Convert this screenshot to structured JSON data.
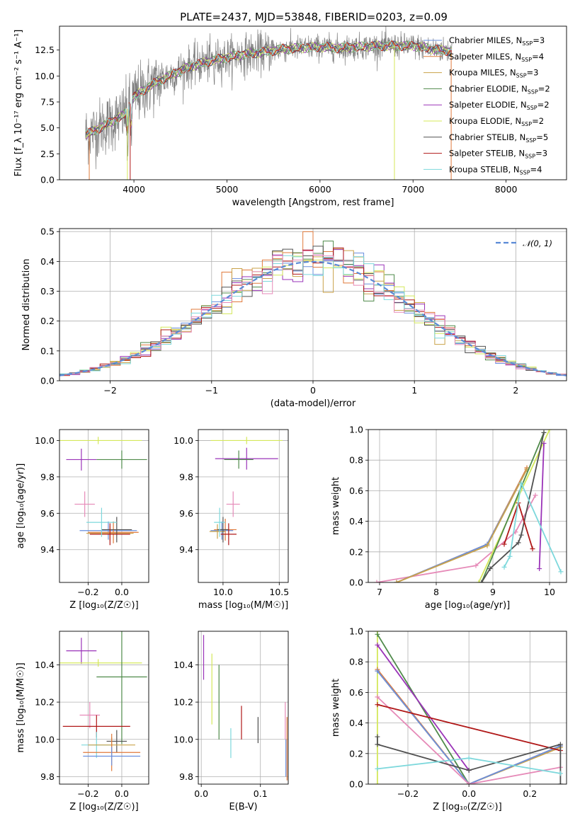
{
  "figure": {
    "title": "PLATE=2437, MJD=53848, FIBERID=0203, z=0.09"
  },
  "colors": {
    "chabrier_miles": "#6a8fde",
    "salpeter_miles": "#e07a3b",
    "kroupa_miles": "#c9a24a",
    "chabrier_elodie": "#4f8a4a",
    "salpeter_elodie": "#9a33b8",
    "kroupa_elodie": "#d4e85a",
    "chabrier_stelib": "#505050",
    "salpeter_stelib": "#b01818",
    "kroupa_stelib": "#7dd8dc",
    "pink": "#e68ab8",
    "data": "#808080",
    "normal": "#5a8ad6"
  },
  "chart_data": [
    {
      "type": "line",
      "name": "spectrum",
      "title": "PLATE=2437, MJD=53848, FIBERID=0203, z=0.09",
      "xlabel": "wavelength [Angstrom, rest frame]",
      "ylabel": "Flux [f_λ 10⁻¹⁷ erg cm⁻² s⁻¹ A⁻¹]",
      "xlim": [
        3200,
        8650
      ],
      "ylim": [
        0,
        14.8
      ],
      "xticks": [
        "4000",
        "5000",
        "6000",
        "7000",
        "8000"
      ],
      "yticks": [
        "0.0",
        "2.5",
        "5.0",
        "7.5",
        "10.0",
        "12.5"
      ],
      "legend_placement": "upper-right",
      "legend": [
        "Chabrier MILES, N_SSP=3",
        "Salpeter MILES, N_SSP=4",
        "Kroupa MILES, N_SSP=3",
        "Chabrier ELODIE, N_SSP=2",
        "Salpeter ELODIE, N_SSP=2",
        "Kroupa ELODIE, N_SSP=2",
        "Chabrier STELIB, N_SSP=5",
        "Salpeter STELIB, N_SSP=3",
        "Kroupa STELIB, N_SSP=4"
      ],
      "continuum": {
        "x": [
          3500,
          3700,
          3900,
          4000,
          4200,
          4400,
          4600,
          4800,
          5000,
          5200,
          5400,
          5600,
          5800,
          6000,
          6200,
          6400,
          6600,
          6800,
          7000,
          7200,
          7400
        ],
        "y": [
          4.4,
          5.3,
          6.3,
          8.0,
          9.2,
          10.1,
          10.9,
          11.4,
          11.8,
          12.1,
          12.3,
          12.6,
          12.7,
          12.8,
          12.7,
          12.8,
          12.9,
          12.9,
          12.9,
          12.6,
          12.4
        ]
      },
      "grid": false
    },
    {
      "type": "histogram",
      "name": "residuals",
      "xlabel": "(data-model)/error",
      "ylabel": "Normed distribution",
      "xlim": [
        -2.5,
        2.5
      ],
      "ylim": [
        0,
        0.51
      ],
      "xticks": [
        "−2",
        "−1",
        "0",
        "1",
        "2"
      ],
      "yticks": [
        "0.0",
        "0.1",
        "0.2",
        "0.3",
        "0.4",
        "0.5"
      ],
      "legend": [
        "𝒩(0, 1)"
      ],
      "legend_placement": "upper-right",
      "bin_width": 0.1,
      "grid": true
    },
    {
      "type": "errorbar",
      "name": "age-vs-Z",
      "xlabel": "Z [log₁₀(Z/Z☉)]",
      "ylabel": "age  [log₁₀(age/yr)]",
      "xlim": [
        -0.37,
        0.16
      ],
      "ylim": [
        9.22,
        10.06
      ],
      "xticks": [
        "−0.2",
        "0.0"
      ],
      "yticks": [
        "9.4",
        "9.6",
        "9.8",
        "10.0"
      ],
      "grid": true,
      "points": [
        {
          "series": "kroupa_elodie",
          "x": -0.14,
          "y": 10.0,
          "xerr": 0.26,
          "yerr": 0.02
        },
        {
          "series": "salpeter_elodie",
          "x": -0.24,
          "y": 9.895,
          "xerr": 0.09,
          "yerr": 0.06
        },
        {
          "series": "chabrier_elodie",
          "x": 0.0,
          "y": 9.895,
          "xerr": 0.15,
          "yerr": 0.05
        },
        {
          "series": "chabrier_miles",
          "x": -0.08,
          "y": 9.505,
          "xerr": 0.17,
          "yerr": 0.05
        },
        {
          "series": "salpeter_miles",
          "x": -0.05,
          "y": 9.495,
          "xerr": 0.15,
          "yerr": 0.06
        },
        {
          "series": "kroupa_miles",
          "x": -0.07,
          "y": 9.49,
          "xerr": 0.14,
          "yerr": 0.04
        },
        {
          "series": "chabrier_stelib",
          "x": -0.03,
          "y": 9.51,
          "xerr": 0.09,
          "yerr": 0.07
        },
        {
          "series": "salpeter_stelib",
          "x": -0.07,
          "y": 9.485,
          "xerr": 0.12,
          "yerr": 0.06
        },
        {
          "series": "pink",
          "x": -0.22,
          "y": 9.65,
          "xerr": 0.06,
          "yerr": 0.07
        },
        {
          "series": "kroupa_stelib",
          "x": -0.12,
          "y": 9.55,
          "xerr": 0.09,
          "yerr": 0.08
        }
      ]
    },
    {
      "type": "errorbar",
      "name": "age-vs-mass",
      "xlabel": "mass [log₁₀(M/M☉)]",
      "ylabel": "",
      "xlim": [
        9.78,
        10.58
      ],
      "ylim": [
        9.22,
        10.06
      ],
      "xticks": [
        "10.0",
        "10.5"
      ],
      "yticks": [
        "9.4",
        "9.6",
        "9.8",
        "10.0"
      ],
      "grid": true,
      "points": [
        {
          "series": "kroupa_elodie",
          "x": 10.21,
          "y": 10.0,
          "xerr": 0.32,
          "yerr": 0.02
        },
        {
          "series": "salpeter_elodie",
          "x": 10.21,
          "y": 9.9,
          "xerr": 0.28,
          "yerr": 0.06
        },
        {
          "series": "chabrier_elodie",
          "x": 10.14,
          "y": 9.895,
          "xerr": 0.13,
          "yerr": 0.05
        },
        {
          "series": "chabrier_miles",
          "x": 9.99,
          "y": 9.505,
          "xerr": 0.1,
          "yerr": 0.05
        },
        {
          "series": "salpeter_miles",
          "x": 10.02,
          "y": 9.51,
          "xerr": 0.1,
          "yerr": 0.06
        },
        {
          "series": "kroupa_miles",
          "x": 9.95,
          "y": 9.5,
          "xerr": 0.07,
          "yerr": 0.04
        },
        {
          "series": "chabrier_stelib",
          "x": 10.0,
          "y": 9.51,
          "xerr": 0.05,
          "yerr": 0.07
        },
        {
          "series": "salpeter_stelib",
          "x": 10.05,
          "y": 9.485,
          "xerr": 0.07,
          "yerr": 0.06
        },
        {
          "series": "pink",
          "x": 10.09,
          "y": 9.65,
          "xerr": 0.06,
          "yerr": 0.07
        },
        {
          "series": "kroupa_stelib",
          "x": 9.97,
          "y": 9.55,
          "xerr": 0.05,
          "yerr": 0.08
        }
      ]
    },
    {
      "type": "line",
      "name": "massweight-vs-age",
      "xlabel": "age  [log₁₀(age/yr)]",
      "ylabel": "mass weight",
      "xlim": [
        6.8,
        10.3
      ],
      "ylim": [
        0,
        1.0
      ],
      "xticks": [
        "7",
        "8",
        "9",
        "10"
      ],
      "yticks": [
        "0.0",
        "0.2",
        "0.4",
        "0.6",
        "0.8",
        "1.0"
      ],
      "grid": true,
      "series": [
        {
          "key": "pink",
          "x": [
            6.95,
            8.7,
            9.4,
            9.75
          ],
          "y": [
            0.0,
            0.11,
            0.33,
            0.57
          ]
        },
        {
          "key": "salpeter_miles",
          "x": [
            7.3,
            8.9,
            9.6
          ],
          "y": [
            0.0,
            0.25,
            0.75
          ]
        },
        {
          "key": "chabrier_miles",
          "x": [
            7.3,
            8.9,
            9.6
          ],
          "y": [
            0.0,
            0.25,
            0.74
          ]
        },
        {
          "key": "kroupa_miles",
          "x": [
            7.3,
            8.9,
            9.6
          ],
          "y": [
            0.0,
            0.24,
            0.74
          ]
        },
        {
          "key": "kroupa_elodie",
          "x": [
            8.75,
            10.0
          ],
          "y": [
            0.0,
            1.0
          ]
        },
        {
          "key": "chabrier_elodie",
          "x": [
            8.8,
            9.9
          ],
          "y": [
            0.0,
            0.98
          ]
        },
        {
          "key": "salpeter_elodie",
          "x": [
            9.82,
            9.9
          ],
          "y": [
            0.09,
            0.91
          ]
        },
        {
          "key": "chabrier_stelib",
          "x": [
            8.8,
            8.95,
            9.45,
            9.5,
            9.9
          ],
          "y": [
            0.0,
            0.09,
            0.26,
            0.31,
            0.98
          ]
        },
        {
          "key": "salpeter_stelib",
          "x": [
            9.2,
            9.45,
            9.7
          ],
          "y": [
            0.25,
            0.52,
            0.22
          ]
        },
        {
          "key": "kroupa_stelib",
          "x": [
            9.2,
            9.3,
            9.5,
            10.2
          ],
          "y": [
            0.1,
            0.17,
            0.65,
            0.07
          ]
        }
      ]
    },
    {
      "type": "errorbar",
      "name": "mass-vs-Z",
      "xlabel": "Z [log₁₀(Z/Z☉)]",
      "ylabel": "mass [log₁₀(M/M☉)]",
      "xlim": [
        -0.37,
        0.16
      ],
      "ylim": [
        9.76,
        10.58
      ],
      "xticks": [
        "−0.2",
        "0.0"
      ],
      "yticks": [
        "9.8",
        "10.0",
        "10.2",
        "10.4"
      ],
      "grid": true,
      "points": [
        {
          "series": "salpeter_elodie",
          "x": -0.24,
          "y": 10.475,
          "xerr": 0.09,
          "yerr": 0.07
        },
        {
          "series": "kroupa_elodie",
          "x": -0.14,
          "y": 10.41,
          "xerr": 0.26,
          "yerr": 0.02
        },
        {
          "series": "chabrier_elodie",
          "x": 0.0,
          "y": 10.335,
          "xerr": 0.15,
          "yerr": 0.36
        },
        {
          "series": "pink",
          "x": -0.19,
          "y": 10.13,
          "xerr": 0.06,
          "yerr": 0.07
        },
        {
          "series": "salpeter_stelib",
          "x": -0.15,
          "y": 10.07,
          "xerr": 0.2,
          "yerr": 0.06
        },
        {
          "series": "chabrier_stelib",
          "x": -0.03,
          "y": 9.99,
          "xerr": 0.06,
          "yerr": 0.06
        },
        {
          "series": "kroupa_stelib",
          "x": -0.15,
          "y": 9.97,
          "xerr": 0.09,
          "yerr": 0.07
        },
        {
          "series": "kroupa_miles",
          "x": -0.06,
          "y": 9.97,
          "xerr": 0.14,
          "yerr": 0.04
        },
        {
          "series": "salpeter_miles",
          "x": -0.06,
          "y": 9.93,
          "xerr": 0.17,
          "yerr": 0.1
        },
        {
          "series": "chabrier_miles",
          "x": -0.06,
          "y": 9.91,
          "xerr": 0.17,
          "yerr": 0.05
        }
      ]
    },
    {
      "type": "errorbar",
      "name": "mass-vs-EBV",
      "xlabel": "E(B-V)",
      "ylabel": "",
      "xlim": [
        -0.005,
        0.147
      ],
      "ylim": [
        9.76,
        10.58
      ],
      "xticks": [
        "0.0",
        "0.1"
      ],
      "yticks": [
        "9.8",
        "10.0",
        "10.2",
        "10.4"
      ],
      "grid": true,
      "points": [
        {
          "series": "salpeter_elodie",
          "x": 0.004,
          "y": 10.44,
          "yerr": 0.12
        },
        {
          "series": "kroupa_elodie",
          "x": 0.018,
          "y": 10.27,
          "yerr": 0.19
        },
        {
          "series": "chabrier_elodie",
          "x": 0.03,
          "y": 10.2,
          "yerr": 0.2
        },
        {
          "series": "kroupa_stelib",
          "x": 0.05,
          "y": 9.98,
          "yerr": 0.08
        },
        {
          "series": "salpeter_stelib",
          "x": 0.068,
          "y": 10.09,
          "yerr": 0.09
        },
        {
          "series": "chabrier_stelib",
          "x": 0.096,
          "y": 10.05,
          "yerr": 0.07
        },
        {
          "series": "pink",
          "x": 0.142,
          "y": 10.1,
          "yerr": 0.1
        },
        {
          "series": "salpeter_miles",
          "x": 0.145,
          "y": 9.95,
          "yerr": 0.17
        },
        {
          "series": "chabrier_miles",
          "x": 0.143,
          "y": 9.9,
          "yerr": 0.1
        }
      ]
    },
    {
      "type": "line",
      "name": "massweight-vs-Z",
      "xlabel": "Z [log₁₀(Z/Z☉)]",
      "ylabel": "mass weight",
      "xlim": [
        -0.33,
        0.32
      ],
      "ylim": [
        0,
        1.0
      ],
      "xticks": [
        "−0.2",
        "0.0",
        "0.2"
      ],
      "yticks": [
        "0.0",
        "0.2",
        "0.4",
        "0.6",
        "0.8",
        "1.0"
      ],
      "grid": true,
      "series": [
        {
          "key": "kroupa_elodie",
          "x": [
            -0.3,
            -0.3
          ],
          "y": [
            1.0,
            0.0
          ]
        },
        {
          "key": "chabrier_elodie",
          "x": [
            -0.3,
            0.0
          ],
          "y": [
            0.98,
            0.0
          ]
        },
        {
          "key": "salpeter_elodie",
          "x": [
            -0.3,
            0.0
          ],
          "y": [
            0.91,
            0.09
          ]
        },
        {
          "key": "salpeter_miles",
          "x": [
            -0.3,
            0.0,
            0.3
          ],
          "y": [
            0.75,
            0.0,
            0.25
          ]
        },
        {
          "key": "kroupa_miles",
          "x": [
            -0.3,
            0.0,
            0.3
          ],
          "y": [
            0.74,
            0.0,
            0.24
          ]
        },
        {
          "key": "chabrier_miles",
          "x": [
            -0.3,
            0.0,
            0.3
          ],
          "y": [
            0.74,
            0.0,
            0.25
          ]
        },
        {
          "key": "pink",
          "x": [
            -0.3,
            0.0,
            0.3
          ],
          "y": [
            0.57,
            0.0,
            0.11
          ]
        },
        {
          "key": "salpeter_stelib",
          "x": [
            -0.3,
            0.3
          ],
          "y": [
            0.52,
            0.22
          ]
        },
        {
          "key": "chabrier_stelib",
          "x": [
            -0.3,
            -0.3,
            0.0,
            0.3,
            0.3
          ],
          "y": [
            0.31,
            0.26,
            0.09,
            0.26,
            0.0
          ]
        },
        {
          "key": "kroupa_stelib",
          "x": [
            -0.3,
            0.0,
            0.3
          ],
          "y": [
            0.1,
            0.17,
            0.07
          ]
        }
      ]
    }
  ]
}
